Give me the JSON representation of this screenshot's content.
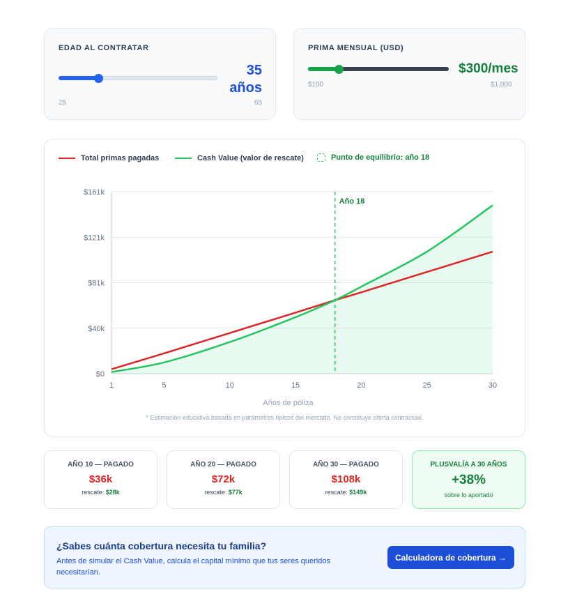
{
  "age_slider": {
    "label": "EDAD AL CONTRATAR",
    "value": 35,
    "value_line1": "35",
    "value_line2": "años",
    "min_label": "25",
    "max_label": "65",
    "min": 25,
    "max": 65,
    "accent_color": "#2563eb"
  },
  "premium_slider": {
    "label": "PRIMA MENSUAL (USD)",
    "value": 300,
    "value_text": "$300/mes",
    "min_label": "$100",
    "max_label": "$1.000",
    "min": 100,
    "max": 1000,
    "accent_color": "#16a34a"
  },
  "legend": {
    "total_label": "Total primas pagadas",
    "cash_label": "Cash Value (valor de rescate)",
    "breakeven_label": "Punto de equilibrio: año 18"
  },
  "chart_data": {
    "type": "line",
    "xlabel": "Años de póliza",
    "ylabel": "",
    "x_ticks": [
      1,
      5,
      10,
      15,
      20,
      25,
      30
    ],
    "y_ticks": [
      "$0",
      "$40k",
      "$81k",
      "$121k",
      "$161k"
    ],
    "ylim": [
      0,
      161
    ],
    "xlim": [
      1,
      30
    ],
    "grid": true,
    "legend_position": "top-left",
    "series": [
      {
        "name": "Total primas pagadas",
        "color": "#dc2626",
        "x": [
          1,
          5,
          10,
          15,
          18,
          20,
          25,
          30
        ],
        "values": [
          4,
          18,
          36,
          54,
          65,
          72,
          90,
          108
        ]
      },
      {
        "name": "Cash Value (valor de rescate)",
        "color": "#22c55e",
        "x": [
          1,
          5,
          10,
          15,
          18,
          20,
          25,
          30
        ],
        "values": [
          1.5,
          10,
          28,
          50,
          65,
          77,
          108,
          149
        ]
      }
    ],
    "breakeven_x": 18,
    "breakeven_label": "Año 18",
    "footnote": "* Estimación educativa basada en parámetros típicos del mercado. No constituye oferta contractual."
  },
  "stats": [
    {
      "title": "AÑO 10 — PAGADO",
      "value": "$36k",
      "sub_label": "rescate:",
      "sub_value": "$28k"
    },
    {
      "title": "AÑO 20 — PAGADO",
      "value": "$72k",
      "sub_label": "rescate:",
      "sub_value": "$77k"
    },
    {
      "title": "AÑO 30 — PAGADO",
      "value": "$108k",
      "sub_label": "rescate:",
      "sub_value": "$149k"
    }
  ],
  "gain": {
    "title": "PLUSVALÍA A 30 AÑOS",
    "value": "+38%",
    "sub": "sobre lo aportado"
  },
  "cta": {
    "title": "¿Sabes cuánta cobertura necesita tu familia?",
    "text": "Antes de simular el Cash Value, calcula el capital mínimo que tus seres queridos necesitarían.",
    "button_label": "Calculadora de cobertura →"
  }
}
